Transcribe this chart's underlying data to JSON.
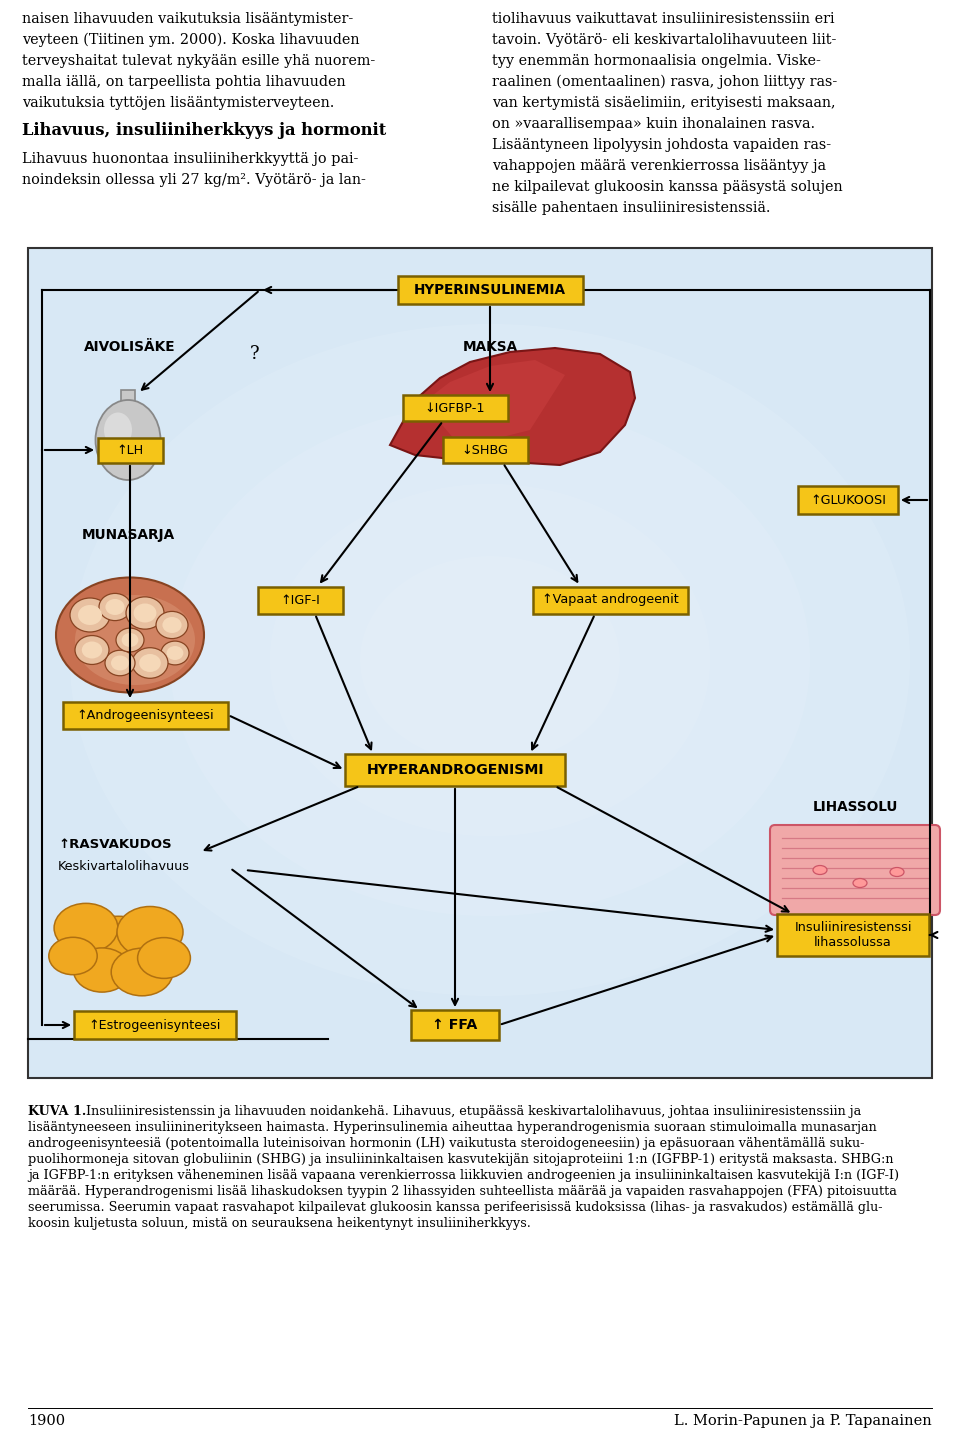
{
  "bg_color": "#d8e8f5",
  "box_fill": "#f5c518",
  "box_edge": "#9a8000",
  "section_title": "Lihavuus, insuliiniherkkyys ja hormonit",
  "page_number": "1900",
  "authors": "L. Morin-Papunen ja P. Tapanainen",
  "left_col": [
    "naisen lihavuuden vaikutuksia lisääntymister-",
    "veyteen (Tiitinen ym. 2000). Koska lihavuuden",
    "terveyshaitat tulevat nykyään esille yhä nuorem-",
    "malla iällä, on tarpeellista pohtia lihavuuden",
    "vaikutuksia tyttöjen lisääntymisterveyteen."
  ],
  "section_body": [
    "Lihavuus huonontaa insuliiniherkkyyttä jo pai-",
    "noindeksin ollessa yli 27 kg/m². Vyötärö- ja lan-"
  ],
  "right_col": [
    "tiolihavuus vaikuttavat insuliiniresistenssiin eri",
    "tavoin. Vyötärö- eli keskivartalolihavuuteen liit-",
    "tyy enemmän hormonaalisia ongelmia. Viske-",
    "raalinen (omentaalinen) rasva, johon liittyy ras-",
    "van kertymistä sisäelimiin, erityisesti maksaan,",
    "on »vaarallisempaa» kuin ihonalainen rasva.",
    "Lisääntyneen lipolyysin johdosta vapaiden ras-",
    "vahappojen määrä verenkierrossa lisääntyy ja",
    "ne kilpailevat glukoosin kanssa pääsystä solujen",
    "sisälle pahentaen insuliiniresistenssiä."
  ],
  "caption_bold": "KUVA 1.",
  "caption_lines": [
    " Insuliiniresistenssin ja lihavuuden noidankehä. Lihavuus, etupäässä keskivartalolihavuus, johtaa insuliiniresistenssiin ja",
    "lisääntyneeseen insuliinineritykseen haimasta. Hyperinsulinemia aiheuttaa hyperandrogenismia suoraan stimuloimalla munasarjan",
    "androgeenisynteesiä (potentoimalla luteinisoivan hormonin (LH) vaikutusta steroidogeneesiin) ja epäsuoraan vähentämällä suku-",
    "puolihormoneja sitovan globuliinin (SHBG) ja insuliininkaltaisen kasvutekijän sitojaproteiini 1:n (IGFBP-1) eritystä maksasta. SHBG:n",
    "ja IGFBP-1:n erityksen väheneminen lisää vapaana verenkierrossa liikkuvien androgeenien ja insuliininkaltaisen kasvutekijä I:n (IGF-I)",
    "määrää. Hyperandrogenismi lisää lihaskudoksen tyypin 2 lihassyiden suhteellista määrää ja vapaiden rasvahappojen (FFA) pitoisuutta",
    "seerumissa. Seerumin vapaat rasvahapot kilpailevat glukoosin kanssa perifeerisissä kudoksissa (lihas- ja rasvakudos) estämällä glu-",
    "koosin kuljetusta soluun, mistä on seurauksena heikentynyt insuliiniherkkyys."
  ]
}
